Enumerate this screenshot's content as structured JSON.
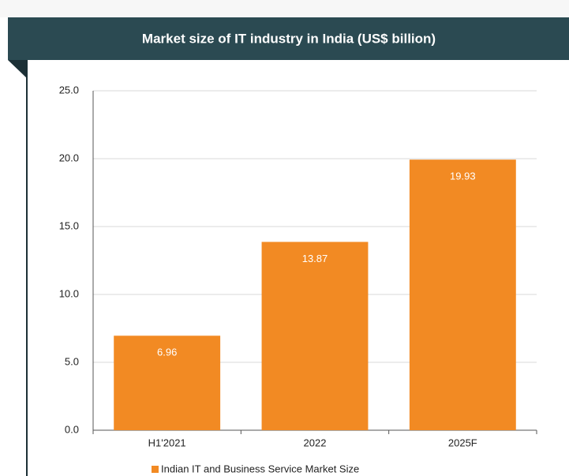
{
  "chart_data": {
    "type": "bar",
    "title": "Market size of IT industry in India (US$ billion)",
    "categories": [
      "H1'2021",
      "2022",
      "2025F"
    ],
    "series": [
      {
        "name": "Indian IT and Business Service Market Size",
        "color": "#f28a23",
        "values": [
          6.96,
          13.87,
          19.93
        ]
      }
    ],
    "ylim": [
      0,
      25
    ],
    "yticks": [
      {
        "value": 0,
        "label": "0.0"
      },
      {
        "value": 5,
        "label": "5.0"
      },
      {
        "value": 10,
        "label": "10.0"
      },
      {
        "value": 15,
        "label": "15.0"
      },
      {
        "value": 20,
        "label": "20.0"
      },
      {
        "value": 25,
        "label": "25.0"
      }
    ],
    "grid": true
  }
}
